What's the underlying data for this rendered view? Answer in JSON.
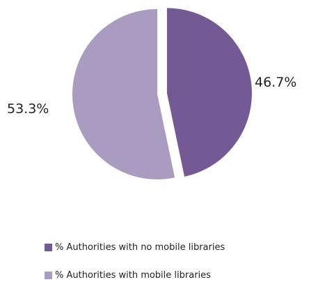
{
  "chart_data": {
    "type": "pie",
    "title": "",
    "slices": [
      {
        "label": "% Authorities with no mobile libraries",
        "value": 46.7,
        "display": "46.7%",
        "color": "#735a95",
        "exploded": true
      },
      {
        "label": "% Authorities with mobile libraries",
        "value": 53.3,
        "display": "53.3%",
        "color": "#aa9cc0",
        "exploded": false
      }
    ],
    "start_angle_deg": 0,
    "direction": "clockwise",
    "legend_position": "bottom-left"
  },
  "legend": {
    "items": [
      {
        "label": "% Authorities with no mobile libraries",
        "color": "#735a95"
      },
      {
        "label": "% Authorities with mobile libraries",
        "color": "#aa9cc0"
      }
    ]
  }
}
